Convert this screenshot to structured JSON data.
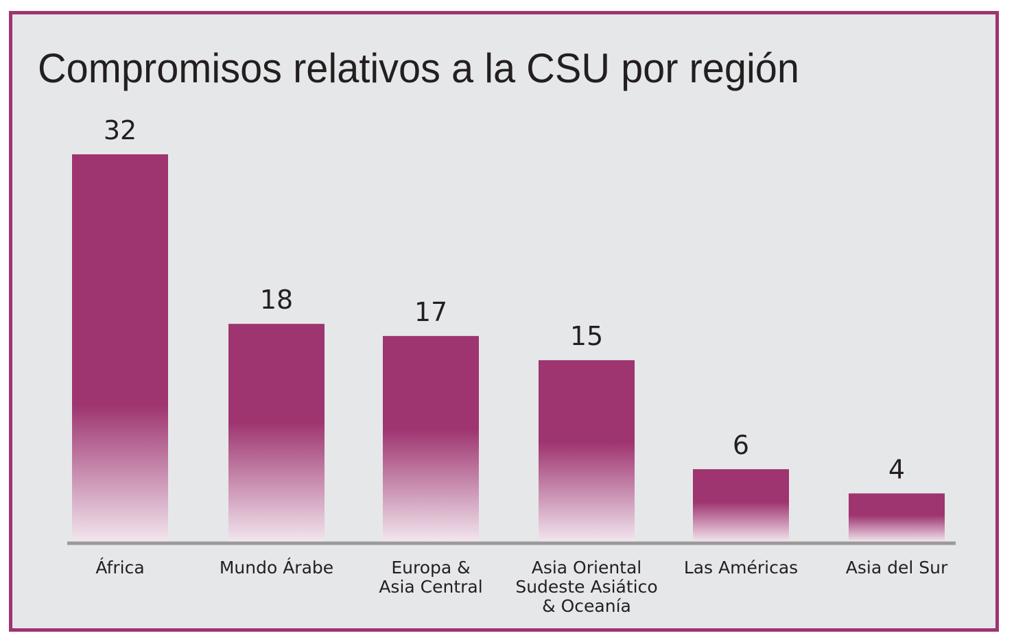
{
  "chart_data": {
    "type": "bar",
    "title": "Compromisos relativos a la CSU por región",
    "categories": [
      [
        "África"
      ],
      [
        "Mundo Árabe"
      ],
      [
        "Europa &",
        "Asia Central"
      ],
      [
        "Asia Oriental",
        "Sudeste Asiático",
        "& Oceanía"
      ],
      [
        "Las Américas"
      ],
      [
        "Asia del Sur"
      ]
    ],
    "values": [
      32,
      18,
      17,
      15,
      6,
      4
    ],
    "ylim": [
      0,
      32
    ],
    "grid": false,
    "data_labels": true,
    "colors": {
      "bar": "#9e3470",
      "background": "#e6e7e9",
      "border": "#9e3470",
      "axis": "#9a9a9a",
      "text": "#231f20"
    }
  }
}
